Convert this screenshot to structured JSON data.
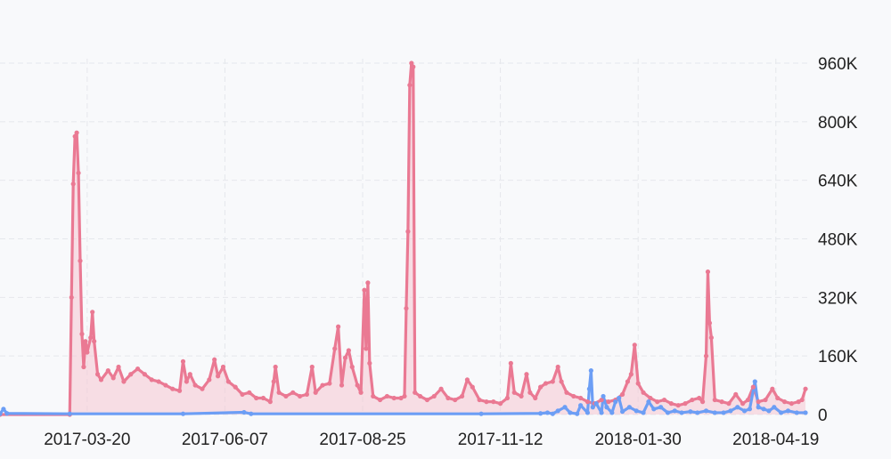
{
  "chart_data": {
    "type": "line",
    "x_ticks": [
      "2017-03-20",
      "2017-06-07",
      "2017-08-25",
      "2017-11-12",
      "2018-01-30",
      "2018-04-19"
    ],
    "y_ticks": [
      "0",
      "160K",
      "320K",
      "480K",
      "640K",
      "800K",
      "960K"
    ],
    "ylim": [
      0,
      960000
    ],
    "x_range": [
      "2017-01-29",
      "2018-05-07"
    ],
    "grid": true,
    "colors": {
      "pink": "#ea7993",
      "pink_fill": "#f5c6d1",
      "blue": "#6c9ef5",
      "grid": "#e5e7ec"
    },
    "series": [
      {
        "color": "pink",
        "area": true,
        "points": [
          [
            "2017-01-29",
            0
          ],
          [
            "2017-03-10",
            0
          ],
          [
            "2017-03-11",
            320000
          ],
          [
            "2017-03-12",
            630000
          ],
          [
            "2017-03-13",
            760000
          ],
          [
            "2017-03-14",
            770000
          ],
          [
            "2017-03-15",
            660000
          ],
          [
            "2017-03-16",
            420000
          ],
          [
            "2017-03-17",
            220000
          ],
          [
            "2017-03-18",
            130000
          ],
          [
            "2017-03-19",
            200000
          ],
          [
            "2017-03-20",
            170000
          ],
          [
            "2017-03-22",
            210000
          ],
          [
            "2017-03-23",
            280000
          ],
          [
            "2017-03-24",
            200000
          ],
          [
            "2017-03-26",
            110000
          ],
          [
            "2017-03-28",
            95000
          ],
          [
            "2017-04-01",
            120000
          ],
          [
            "2017-04-04",
            100000
          ],
          [
            "2017-04-07",
            130000
          ],
          [
            "2017-04-10",
            90000
          ],
          [
            "2017-04-14",
            110000
          ],
          [
            "2017-04-18",
            125000
          ],
          [
            "2017-04-22",
            110000
          ],
          [
            "2017-04-26",
            95000
          ],
          [
            "2017-04-30",
            90000
          ],
          [
            "2017-05-04",
            80000
          ],
          [
            "2017-05-08",
            70000
          ],
          [
            "2017-05-12",
            65000
          ],
          [
            "2017-05-14",
            145000
          ],
          [
            "2017-05-16",
            90000
          ],
          [
            "2017-05-18",
            110000
          ],
          [
            "2017-05-21",
            80000
          ],
          [
            "2017-05-25",
            70000
          ],
          [
            "2017-05-29",
            95000
          ],
          [
            "2017-06-01",
            150000
          ],
          [
            "2017-06-03",
            105000
          ],
          [
            "2017-06-06",
            130000
          ],
          [
            "2017-06-09",
            90000
          ],
          [
            "2017-06-13",
            75000
          ],
          [
            "2017-06-17",
            55000
          ],
          [
            "2017-06-21",
            60000
          ],
          [
            "2017-06-25",
            45000
          ],
          [
            "2017-06-29",
            45000
          ],
          [
            "2017-07-03",
            35000
          ],
          [
            "2017-07-05",
            90000
          ],
          [
            "2017-07-06",
            130000
          ],
          [
            "2017-07-08",
            60000
          ],
          [
            "2017-07-12",
            50000
          ],
          [
            "2017-07-16",
            60000
          ],
          [
            "2017-07-20",
            50000
          ],
          [
            "2017-07-24",
            55000
          ],
          [
            "2017-07-27",
            130000
          ],
          [
            "2017-07-29",
            60000
          ],
          [
            "2017-08-02",
            80000
          ],
          [
            "2017-08-06",
            85000
          ],
          [
            "2017-08-09",
            180000
          ],
          [
            "2017-08-11",
            240000
          ],
          [
            "2017-08-13",
            80000
          ],
          [
            "2017-08-15",
            155000
          ],
          [
            "2017-08-17",
            175000
          ],
          [
            "2017-08-19",
            130000
          ],
          [
            "2017-08-22",
            80000
          ],
          [
            "2017-08-24",
            60000
          ],
          [
            "2017-08-26",
            340000
          ],
          [
            "2017-08-27",
            180000
          ],
          [
            "2017-08-28",
            360000
          ],
          [
            "2017-08-29",
            140000
          ],
          [
            "2017-08-31",
            50000
          ],
          [
            "2017-09-04",
            40000
          ],
          [
            "2017-09-08",
            50000
          ],
          [
            "2017-09-12",
            45000
          ],
          [
            "2017-09-16",
            45000
          ],
          [
            "2017-09-18",
            50000
          ],
          [
            "2017-09-19",
            290000
          ],
          [
            "2017-09-20",
            500000
          ],
          [
            "2017-09-21",
            900000
          ],
          [
            "2017-09-22",
            960000
          ],
          [
            "2017-09-23",
            950000
          ],
          [
            "2017-09-24",
            60000
          ],
          [
            "2017-09-27",
            50000
          ],
          [
            "2017-10-01",
            40000
          ],
          [
            "2017-10-05",
            50000
          ],
          [
            "2017-10-09",
            70000
          ],
          [
            "2017-10-13",
            45000
          ],
          [
            "2017-10-17",
            40000
          ],
          [
            "2017-10-21",
            50000
          ],
          [
            "2017-10-24",
            95000
          ],
          [
            "2017-10-27",
            75000
          ],
          [
            "2017-10-31",
            40000
          ],
          [
            "2017-11-04",
            35000
          ],
          [
            "2017-11-08",
            35000
          ],
          [
            "2017-11-12",
            30000
          ],
          [
            "2017-11-16",
            45000
          ],
          [
            "2017-11-18",
            140000
          ],
          [
            "2017-11-20",
            60000
          ],
          [
            "2017-11-24",
            50000
          ],
          [
            "2017-11-27",
            110000
          ],
          [
            "2017-11-29",
            60000
          ],
          [
            "2017-12-02",
            45000
          ],
          [
            "2017-12-05",
            75000
          ],
          [
            "2017-12-08",
            85000
          ],
          [
            "2017-12-12",
            90000
          ],
          [
            "2017-12-15",
            130000
          ],
          [
            "2017-12-17",
            90000
          ],
          [
            "2017-12-20",
            60000
          ],
          [
            "2017-12-24",
            50000
          ],
          [
            "2017-12-28",
            45000
          ],
          [
            "2018-01-01",
            35000
          ],
          [
            "2018-01-05",
            30000
          ],
          [
            "2018-01-09",
            40000
          ],
          [
            "2018-01-13",
            35000
          ],
          [
            "2018-01-17",
            40000
          ],
          [
            "2018-01-21",
            55000
          ],
          [
            "2018-01-24",
            90000
          ],
          [
            "2018-01-26",
            110000
          ],
          [
            "2018-01-28",
            190000
          ],
          [
            "2018-01-30",
            85000
          ],
          [
            "2018-02-02",
            60000
          ],
          [
            "2018-02-06",
            45000
          ],
          [
            "2018-02-10",
            35000
          ],
          [
            "2018-02-14",
            40000
          ],
          [
            "2018-02-18",
            30000
          ],
          [
            "2018-02-22",
            25000
          ],
          [
            "2018-02-26",
            30000
          ],
          [
            "2018-03-02",
            40000
          ],
          [
            "2018-03-06",
            45000
          ],
          [
            "2018-03-08",
            35000
          ],
          [
            "2018-03-10",
            160000
          ],
          [
            "2018-03-11",
            390000
          ],
          [
            "2018-03-12",
            250000
          ],
          [
            "2018-03-13",
            210000
          ],
          [
            "2018-03-15",
            40000
          ],
          [
            "2018-03-19",
            35000
          ],
          [
            "2018-03-23",
            30000
          ],
          [
            "2018-03-27",
            55000
          ],
          [
            "2018-03-31",
            30000
          ],
          [
            "2018-04-03",
            40000
          ],
          [
            "2018-04-06",
            75000
          ],
          [
            "2018-04-09",
            35000
          ],
          [
            "2018-04-13",
            40000
          ],
          [
            "2018-04-17",
            70000
          ],
          [
            "2018-04-20",
            45000
          ],
          [
            "2018-04-24",
            35000
          ],
          [
            "2018-04-28",
            30000
          ],
          [
            "2018-05-02",
            35000
          ],
          [
            "2018-05-04",
            40000
          ],
          [
            "2018-05-06",
            70000
          ]
        ]
      },
      {
        "color": "blue",
        "area": false,
        "points": [
          [
            "2017-01-29",
            2000
          ],
          [
            "2017-01-31",
            15000
          ],
          [
            "2017-02-02",
            3000
          ],
          [
            "2017-03-10",
            2000
          ],
          [
            "2017-05-14",
            2000
          ],
          [
            "2017-06-18",
            6000
          ],
          [
            "2017-06-22",
            2000
          ],
          [
            "2017-11-01",
            2000
          ],
          [
            "2017-12-05",
            3000
          ],
          [
            "2017-12-09",
            5000
          ],
          [
            "2017-12-12",
            2000
          ],
          [
            "2017-12-15",
            10000
          ],
          [
            "2017-12-19",
            20000
          ],
          [
            "2017-12-22",
            5000
          ],
          [
            "2017-12-26",
            2000
          ],
          [
            "2017-12-28",
            25000
          ],
          [
            "2018-01-01",
            5000
          ],
          [
            "2018-01-02",
            70000
          ],
          [
            "2018-01-03",
            120000
          ],
          [
            "2018-01-04",
            20000
          ],
          [
            "2018-01-06",
            30000
          ],
          [
            "2018-01-09",
            5000
          ],
          [
            "2018-01-10",
            50000
          ],
          [
            "2018-01-12",
            20000
          ],
          [
            "2018-01-15",
            5000
          ],
          [
            "2018-01-17",
            35000
          ],
          [
            "2018-01-19",
            45000
          ],
          [
            "2018-01-21",
            8000
          ],
          [
            "2018-01-25",
            20000
          ],
          [
            "2018-01-29",
            10000
          ],
          [
            "2018-02-02",
            5000
          ],
          [
            "2018-02-05",
            35000
          ],
          [
            "2018-02-08",
            15000
          ],
          [
            "2018-02-12",
            20000
          ],
          [
            "2018-02-16",
            5000
          ],
          [
            "2018-02-20",
            10000
          ],
          [
            "2018-02-24",
            5000
          ],
          [
            "2018-03-01",
            8000
          ],
          [
            "2018-03-05",
            5000
          ],
          [
            "2018-03-10",
            10000
          ],
          [
            "2018-03-15",
            5000
          ],
          [
            "2018-03-20",
            5000
          ],
          [
            "2018-03-24",
            10000
          ],
          [
            "2018-03-28",
            20000
          ],
          [
            "2018-04-01",
            10000
          ],
          [
            "2018-04-04",
            15000
          ],
          [
            "2018-04-07",
            90000
          ],
          [
            "2018-04-09",
            20000
          ],
          [
            "2018-04-12",
            15000
          ],
          [
            "2018-04-15",
            10000
          ],
          [
            "2018-04-18",
            20000
          ],
          [
            "2018-04-22",
            5000
          ],
          [
            "2018-04-26",
            10000
          ],
          [
            "2018-05-01",
            5000
          ],
          [
            "2018-05-06",
            5000
          ]
        ]
      }
    ]
  }
}
